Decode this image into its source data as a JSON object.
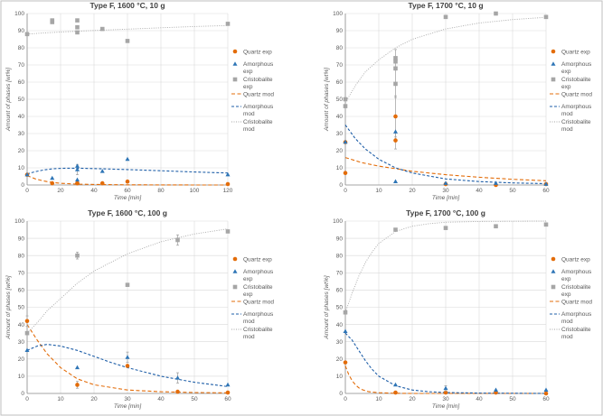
{
  "legend_labels": {
    "quartz_exp": "Quartz exp",
    "amorphous_exp": [
      "Amorphous",
      "exp"
    ],
    "cristobalite_exp": [
      "Cristobalite",
      "exp"
    ],
    "quartz_mod": "Quartz mod",
    "amorphous_mod": [
      "Amorphous",
      "mod"
    ],
    "cristobalite_mod": [
      "Cristobalite",
      "mod"
    ]
  },
  "colors": {
    "quartz": "#e36c09",
    "amorphous": "#2e75b6",
    "amorphous_line": "#1f5fa8",
    "cristobalite": "#a6a6a6",
    "cristobalite_line": "#a6a6a6"
  },
  "chart_data": [
    {
      "type": "scatter",
      "title": "Type F, 1600 °C, 10 g",
      "xlabel": "Time [min]",
      "ylabel": "Amount of phases [wt%]",
      "xlim": [
        0,
        120
      ],
      "ylim": [
        0,
        100
      ],
      "xticks": [
        0,
        20,
        40,
        60,
        80,
        100,
        120
      ],
      "yticks": [
        0,
        10,
        20,
        30,
        40,
        50,
        60,
        70,
        80,
        90,
        100
      ],
      "series": [
        {
          "name": "Quartz exp",
          "kind": "exp",
          "phase": "quartz",
          "x": [
            0,
            15,
            30,
            30,
            45,
            60,
            120
          ],
          "y": [
            6,
            1,
            1,
            1,
            1,
            2,
            0.5
          ]
        },
        {
          "name": "Amorphous exp",
          "kind": "exp",
          "phase": "amorphous",
          "x": [
            0,
            15,
            30,
            30,
            30,
            45,
            60,
            120
          ],
          "y": [
            6,
            4,
            9,
            11,
            3,
            8,
            15,
            6
          ],
          "err": [
            0,
            0,
            3,
            0,
            0,
            0,
            0,
            0
          ]
        },
        {
          "name": "Cristobalite exp",
          "kind": "exp",
          "phase": "cristobalite",
          "x": [
            0,
            15,
            15,
            30,
            30,
            30,
            45,
            60,
            120
          ],
          "y": [
            88,
            95,
            96,
            96,
            92,
            89,
            91,
            84,
            94
          ]
        },
        {
          "name": "Quartz mod",
          "kind": "mod",
          "phase": "quartz",
          "x": [
            0,
            5,
            10,
            15,
            20,
            30,
            40,
            60,
            80,
            100,
            120
          ],
          "y": [
            5.5,
            3.5,
            2.3,
            1.5,
            1,
            0.5,
            0.3,
            0.1,
            0.05,
            0,
            0
          ]
        },
        {
          "name": "Amorphous mod",
          "kind": "mod",
          "phase": "amorphous",
          "x": [
            0,
            5,
            10,
            15,
            20,
            25,
            30,
            40,
            60,
            80,
            100,
            120
          ],
          "y": [
            6.5,
            7.8,
            8.8,
            9.4,
            9.7,
            9.8,
            9.8,
            9.6,
            9,
            8.3,
            7.6,
            7
          ]
        },
        {
          "name": "Cristobalite mod",
          "kind": "mod",
          "phase": "cristobalite",
          "x": [
            0,
            10,
            20,
            30,
            40,
            60,
            80,
            100,
            120
          ],
          "y": [
            88,
            88.7,
            89.2,
            89.7,
            90.1,
            90.9,
            91.7,
            92.4,
            93
          ]
        }
      ]
    },
    {
      "type": "scatter",
      "title": "Type F, 1700 °C, 10 g",
      "xlabel": "Time [min]",
      "ylabel": "Amount of phases [wt%]",
      "xlim": [
        0,
        60
      ],
      "ylim": [
        0,
        100
      ],
      "xticks": [
        0,
        10,
        20,
        30,
        40,
        50,
        60
      ],
      "yticks": [
        0,
        10,
        20,
        30,
        40,
        50,
        60,
        70,
        80,
        90,
        100
      ],
      "series": [
        {
          "name": "Quartz exp",
          "kind": "exp",
          "phase": "quartz",
          "x": [
            0,
            0,
            15,
            15,
            30,
            45,
            60
          ],
          "y": [
            25,
            7,
            40,
            26,
            0.5,
            0,
            0.5
          ],
          "err": [
            0,
            0,
            12,
            5,
            0,
            0,
            0
          ]
        },
        {
          "name": "Amorphous exp",
          "kind": "exp",
          "phase": "amorphous",
          "x": [
            0,
            15,
            15,
            30,
            45,
            60
          ],
          "y": [
            25,
            31,
            2,
            1,
            1,
            0.5
          ]
        },
        {
          "name": "Cristobalite exp",
          "kind": "exp",
          "phase": "cristobalite",
          "x": [
            0,
            0,
            15,
            15,
            15,
            15,
            30,
            45,
            60
          ],
          "y": [
            50,
            46,
            74,
            72,
            68,
            59,
            98,
            100,
            98
          ],
          "err": [
            0,
            0,
            5,
            0,
            0,
            8,
            0,
            0,
            0
          ]
        },
        {
          "name": "Quartz mod",
          "kind": "mod",
          "phase": "quartz",
          "x": [
            0,
            5,
            10,
            15,
            20,
            30,
            40,
            50,
            60
          ],
          "y": [
            16,
            13,
            11,
            9.5,
            8,
            6,
            4.5,
            3.3,
            2.5
          ]
        },
        {
          "name": "Amorphous mod",
          "kind": "mod",
          "phase": "amorphous",
          "x": [
            0,
            3,
            6,
            10,
            15,
            20,
            30,
            40,
            50,
            60
          ],
          "y": [
            35,
            27,
            21,
            15,
            10,
            7,
            3.5,
            2,
            1.2,
            0.8
          ]
        },
        {
          "name": "Cristobalite mod",
          "kind": "mod",
          "phase": "cristobalite",
          "x": [
            0,
            3,
            6,
            10,
            15,
            20,
            30,
            40,
            50,
            60
          ],
          "y": [
            48,
            58,
            66,
            73,
            80,
            85,
            91,
            94.5,
            96.5,
            97.8
          ]
        }
      ]
    },
    {
      "type": "scatter",
      "title": "Type F, 1600 °C, 100 g",
      "xlabel": "Time [min]",
      "ylabel": "Amount of phases [wt%]",
      "xlim": [
        0,
        60
      ],
      "ylim": [
        0,
        100
      ],
      "xticks": [
        0,
        10,
        20,
        30,
        40,
        50,
        60
      ],
      "yticks": [
        0,
        10,
        20,
        30,
        40,
        50,
        60,
        70,
        80,
        90,
        100
      ],
      "series": [
        {
          "name": "Quartz exp",
          "kind": "exp",
          "phase": "quartz",
          "x": [
            0,
            15,
            30,
            45,
            60
          ],
          "y": [
            42,
            5,
            16,
            1,
            0.5
          ],
          "err": [
            3,
            2,
            0,
            0,
            0
          ]
        },
        {
          "name": "Amorphous exp",
          "kind": "exp",
          "phase": "amorphous",
          "x": [
            0,
            15,
            30,
            45,
            60
          ],
          "y": [
            25,
            15,
            21,
            9,
            5
          ],
          "err": [
            0,
            0,
            3,
            3,
            0
          ]
        },
        {
          "name": "Cristobalite exp",
          "kind": "exp",
          "phase": "cristobalite",
          "x": [
            0,
            15,
            30,
            45,
            60
          ],
          "y": [
            35,
            80,
            63,
            89,
            94
          ],
          "err": [
            0,
            2,
            0,
            3,
            0
          ]
        },
        {
          "name": "Quartz mod",
          "kind": "mod",
          "phase": "quartz",
          "x": [
            0,
            3,
            6,
            10,
            15,
            20,
            30,
            40,
            50,
            60
          ],
          "y": [
            40,
            31,
            23,
            15,
            8.5,
            5,
            2,
            1,
            0.5,
            0.3
          ]
        },
        {
          "name": "Amorphous mod",
          "kind": "mod",
          "phase": "amorphous",
          "x": [
            0,
            3,
            6,
            10,
            15,
            20,
            25,
            30,
            40,
            50,
            60
          ],
          "y": [
            25,
            27.5,
            28.5,
            27.5,
            25,
            21.5,
            18,
            15,
            10,
            6.5,
            4
          ]
        },
        {
          "name": "Cristobalite mod",
          "kind": "mod",
          "phase": "cristobalite",
          "x": [
            0,
            3,
            6,
            10,
            15,
            20,
            30,
            40,
            50,
            60
          ],
          "y": [
            35,
            41,
            48,
            55,
            64,
            71,
            81,
            88,
            92.5,
            95.5
          ]
        }
      ]
    },
    {
      "type": "scatter",
      "title": "Type F, 1700 °C, 100 g",
      "xlabel": "Time [min]",
      "ylabel": "Amount of phases [wt%]",
      "xlim": [
        0,
        60
      ],
      "ylim": [
        0,
        100
      ],
      "xticks": [
        0,
        10,
        20,
        30,
        40,
        50,
        60
      ],
      "yticks": [
        0,
        10,
        20,
        30,
        40,
        50,
        60,
        70,
        80,
        90,
        100
      ],
      "series": [
        {
          "name": "Quartz exp",
          "kind": "exp",
          "phase": "quartz",
          "x": [
            0,
            15,
            30,
            45,
            60
          ],
          "y": [
            18,
            0.5,
            0.5,
            0.5,
            0
          ]
        },
        {
          "name": "Amorphous exp",
          "kind": "exp",
          "phase": "amorphous",
          "x": [
            0,
            15,
            30,
            45,
            60
          ],
          "y": [
            36,
            5,
            3,
            2,
            2
          ],
          "err": [
            0,
            0,
            1.5,
            0,
            0
          ]
        },
        {
          "name": "Cristobalite exp",
          "kind": "exp",
          "phase": "cristobalite",
          "x": [
            0,
            15,
            30,
            45,
            60
          ],
          "y": [
            47,
            95,
            96,
            97,
            98
          ]
        },
        {
          "name": "Quartz mod",
          "kind": "mod",
          "phase": "quartz",
          "x": [
            0,
            1,
            2,
            3,
            4,
            5,
            7,
            10,
            15,
            20,
            60
          ],
          "y": [
            16,
            11,
            7.5,
            5,
            3.3,
            2.2,
            1,
            0.4,
            0.1,
            0,
            0
          ]
        },
        {
          "name": "Amorphous mod",
          "kind": "mod",
          "phase": "amorphous",
          "x": [
            0,
            2,
            4,
            6,
            8,
            10,
            15,
            20,
            25,
            30,
            40,
            60
          ],
          "y": [
            35,
            31,
            25,
            19,
            14,
            10,
            4.5,
            2,
            1,
            0.5,
            0.2,
            0
          ]
        },
        {
          "name": "Cristobalite mod",
          "kind": "mod",
          "phase": "cristobalite",
          "x": [
            0,
            2,
            4,
            6,
            8,
            10,
            15,
            20,
            25,
            30,
            40,
            60
          ],
          "y": [
            47,
            58,
            68,
            76,
            82,
            87,
            94,
            97,
            98.5,
            99.3,
            99.8,
            100
          ]
        }
      ]
    }
  ]
}
